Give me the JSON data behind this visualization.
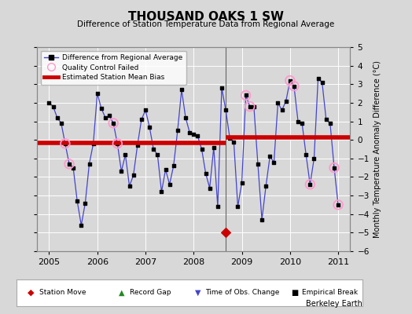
{
  "title": "THOUSAND OAKS 1 SW",
  "subtitle": "Difference of Station Temperature Data from Regional Average",
  "ylabel": "Monthly Temperature Anomaly Difference (°C)",
  "credit": "Berkeley Earth",
  "xlim": [
    2004.75,
    2011.25
  ],
  "ylim": [
    -6,
    5
  ],
  "yticks": [
    -6,
    -5,
    -4,
    -3,
    -2,
    -1,
    0,
    1,
    2,
    3,
    4,
    5
  ],
  "xticks": [
    2005,
    2006,
    2007,
    2008,
    2009,
    2010,
    2011
  ],
  "bias_before": -0.15,
  "bias_after": 0.15,
  "break_x": 2008.67,
  "station_move_x": 2008.67,
  "station_move_y": -5.0,
  "bg_color": "#d8d8d8",
  "plot_bg_color": "#d8d8d8",
  "line_color": "#4444cc",
  "marker_color": "#000000",
  "bias_color": "#cc0000",
  "qc_color": "#ff99cc",
  "data_x": [
    2005.0,
    2005.083,
    2005.167,
    2005.25,
    2005.333,
    2005.417,
    2005.5,
    2005.583,
    2005.667,
    2005.75,
    2005.833,
    2005.917,
    2006.0,
    2006.083,
    2006.167,
    2006.25,
    2006.333,
    2006.417,
    2006.5,
    2006.583,
    2006.667,
    2006.75,
    2006.833,
    2006.917,
    2007.0,
    2007.083,
    2007.167,
    2007.25,
    2007.333,
    2007.417,
    2007.5,
    2007.583,
    2007.667,
    2007.75,
    2007.833,
    2007.917,
    2008.0,
    2008.083,
    2008.167,
    2008.25,
    2008.333,
    2008.417,
    2008.5,
    2008.583,
    2008.667,
    2008.75,
    2008.833,
    2008.917,
    2009.0,
    2009.083,
    2009.167,
    2009.25,
    2009.333,
    2009.417,
    2009.5,
    2009.583,
    2009.667,
    2009.75,
    2009.833,
    2009.917,
    2010.0,
    2010.083,
    2010.167,
    2010.25,
    2010.333,
    2010.417,
    2010.5,
    2010.583,
    2010.667,
    2010.75,
    2010.833,
    2010.917,
    2011.0
  ],
  "data_y": [
    2.0,
    1.8,
    1.2,
    0.9,
    -0.2,
    -1.3,
    -1.5,
    -3.3,
    -4.6,
    -3.4,
    -1.3,
    -0.2,
    2.5,
    1.7,
    1.2,
    1.3,
    0.9,
    -0.2,
    -1.7,
    -0.8,
    -2.5,
    -1.9,
    -0.3,
    1.1,
    1.6,
    0.7,
    -0.5,
    -0.8,
    -2.8,
    -1.6,
    -2.4,
    -1.4,
    0.5,
    2.7,
    1.2,
    0.4,
    0.3,
    0.2,
    -0.5,
    -1.8,
    -2.6,
    -0.4,
    -3.6,
    2.8,
    1.6,
    0.1,
    -0.1,
    -3.6,
    -2.3,
    2.4,
    1.8,
    1.8,
    -1.3,
    -4.3,
    -2.5,
    -0.9,
    -1.2,
    2.0,
    1.6,
    2.1,
    3.2,
    2.9,
    1.0,
    0.9,
    -0.8,
    -2.4,
    -1.0,
    3.3,
    3.1,
    1.1,
    0.9,
    -1.5,
    -3.5
  ],
  "qc_failed_indices": [
    4,
    5,
    16,
    17,
    49,
    50,
    60,
    61,
    65,
    71,
    72
  ],
  "legend_main": [
    "Difference from Regional Average",
    "Quality Control Failed",
    "Estimated Station Mean Bias"
  ],
  "legend_bottom": [
    "Station Move",
    "Record Gap",
    "Time of Obs. Change",
    "Empirical Break"
  ]
}
